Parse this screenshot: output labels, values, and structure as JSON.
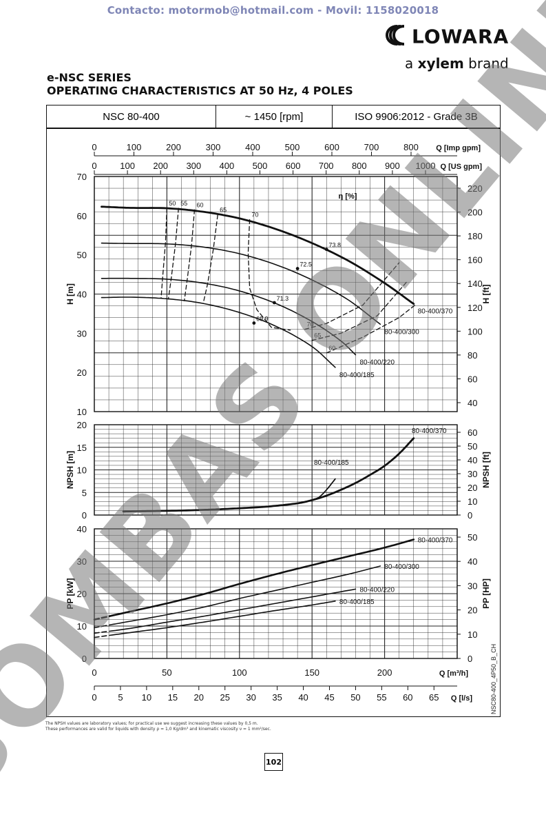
{
  "header": {
    "contact": "Contacto: motormob@hotmail.com - Movil: 1158020018",
    "brand": "LOWARA",
    "brand_sub_prefix": "a ",
    "brand_sub_bold": "xylem",
    "brand_sub_suffix": " brand",
    "series": "e-NSC SERIES",
    "title": "OPERATING CHARACTERISTICS AT 50 Hz, 4 POLES"
  },
  "spec_table": {
    "model": "NSC 80-400",
    "speed": "~ 1450 [rpm]",
    "standard": "ISO 9906:2012 - Grade 3B"
  },
  "footer": {
    "note1": "The NPSH values are laboratory values; for practical use we suggest increasing these values by 0,5 m.",
    "note2": "These performances are valid for liquids with density ρ = 1,0 Kg/dm³ and kinematic viscosity ν = 1 mm²/sec.",
    "page": "102",
    "code": "NSC80-400_4P50_B_CH"
  },
  "watermark": "BOMBAS ONLINE",
  "colors": {
    "line": "#111111",
    "grid": "#222222",
    "watermark": "#8a8a8a",
    "contact": "#7f86b6"
  },
  "chart_data": [
    {
      "type": "line",
      "name": "head",
      "xlabel": "Q [m³/h]",
      "ylabel_left": "H [m]",
      "ylabel_right": "H [ft]",
      "xlim": [
        0,
        250
      ],
      "ylim": [
        10,
        70
      ],
      "yticks_left": [
        "10",
        "20",
        "30",
        "40",
        "50",
        "60",
        "70"
      ],
      "yticks_right": [
        "40",
        "60",
        "80",
        "100",
        "120",
        "140",
        "160",
        "180",
        "200",
        "220"
      ],
      "top_axis_imp": {
        "label": "Q [Imp gpm]",
        "ticks": [
          "0",
          "100",
          "200",
          "300",
          "400",
          "500",
          "600",
          "700",
          "800"
        ]
      },
      "top_axis_us": {
        "label": "Q [US gpm]",
        "ticks": [
          "0",
          "100",
          "200",
          "300",
          "400",
          "500",
          "600",
          "700",
          "800",
          "900",
          "1000"
        ]
      },
      "efficiency_label": "η [%]",
      "series": [
        {
          "name": "80-400/370",
          "x": [
            5,
            25,
            50,
            75,
            100,
            125,
            150,
            175,
            200,
            220
          ],
          "y": [
            62.3,
            62,
            61.9,
            61,
            59.3,
            56.6,
            53,
            48.5,
            42.8,
            37.5
          ],
          "dashed_to": 5
        },
        {
          "name": "80-400/300",
          "x": [
            5,
            25,
            50,
            75,
            100,
            125,
            150,
            175,
            197
          ],
          "y": [
            53,
            52.9,
            52.8,
            52,
            50.3,
            47.5,
            43.6,
            38.5,
            32.3
          ],
          "dashed_to": 5
        },
        {
          "name": "80-400/220",
          "x": [
            5,
            25,
            50,
            75,
            100,
            125,
            150,
            170,
            180
          ],
          "y": [
            44,
            44,
            43.8,
            42.8,
            40.8,
            37.6,
            33,
            28,
            24.5
          ],
          "dashed_to": 5
        },
        {
          "name": "80-400/185",
          "x": [
            5,
            25,
            50,
            75,
            100,
            125,
            150,
            166
          ],
          "y": [
            39.1,
            39.2,
            38.8,
            37.6,
            35.3,
            31.8,
            26.6,
            21.3
          ],
          "dashed_to": 5
        }
      ],
      "efficiency_curves": [
        {
          "label": "50",
          "x": [
            50,
            49,
            47,
            46
          ],
          "y": [
            61.9,
            53,
            44,
            39
          ]
        },
        {
          "label": "55",
          "x": [
            58,
            56,
            53,
            51
          ],
          "y": [
            61.9,
            53,
            44,
            38.7
          ]
        },
        {
          "label": "60",
          "x": [
            69,
            67,
            64,
            62
          ],
          "y": [
            61.5,
            52.5,
            43.7,
            38.3
          ]
        },
        {
          "label": "65",
          "x": [
            85,
            82,
            78,
            75
          ],
          "y": [
            60.2,
            51.5,
            42.5,
            37.6
          ]
        },
        {
          "label": "70",
          "x": [
            107,
            106,
            107,
            112,
            122,
            135
          ],
          "y": [
            59,
            50.5,
            41.5,
            36,
            31.5,
            30.8
          ]
        },
        {
          "label": "70",
          "x": [
            145,
            160,
            185,
            210
          ],
          "y": [
            31,
            32.5,
            37.2,
            48
          ]
        },
        {
          "label": "65",
          "x": [
            150,
            170,
            195,
            215
          ],
          "y": [
            28.2,
            30,
            34.5,
            43
          ]
        },
        {
          "label": "60",
          "x": [
            160,
            185,
            210,
            222
          ],
          "y": [
            25,
            29,
            34,
            37.5
          ]
        }
      ],
      "efficiency_points": [
        {
          "label": "73.8",
          "x": 160,
          "y": 51.4
        },
        {
          "label": "72.5",
          "x": 140,
          "y": 46.5
        },
        {
          "label": "71.3",
          "x": 124,
          "y": 37.8
        },
        {
          "label": "69.9",
          "x": 110,
          "y": 32.6
        }
      ]
    },
    {
      "type": "line",
      "name": "npsh",
      "ylabel_left": "NPSH [m]",
      "ylabel_right": "NPSH [ft]",
      "ylim": [
        0,
        20
      ],
      "yticks_left": [
        "0",
        "5",
        "10",
        "15",
        "20"
      ],
      "yticks_right": [
        "0",
        "10",
        "20",
        "30",
        "40",
        "50",
        "60"
      ],
      "series": [
        {
          "name": "80-400/370",
          "x": [
            20,
            40,
            60,
            80,
            100,
            120,
            140,
            150,
            160,
            170,
            180,
            190,
            200,
            210,
            220
          ],
          "y": [
            0.8,
            0.9,
            1,
            1.2,
            1.5,
            1.9,
            2.6,
            3.3,
            4.3,
            5.6,
            7.1,
            8.9,
            10.9,
            13.6,
            17
          ]
        },
        {
          "name": "80-400/185",
          "x": [
            140,
            150,
            155,
            160,
            166
          ],
          "y": [
            2.6,
            3.3,
            4,
            5.6,
            8
          ]
        }
      ]
    },
    {
      "type": "line",
      "name": "power",
      "xlabel": "Q [m³/h]",
      "ylabel_left": "PP [kW]",
      "ylabel_right": "PP [HP]",
      "ylim": [
        0,
        40
      ],
      "yticks_left": [
        "0",
        "10",
        "20",
        "30",
        "40"
      ],
      "yticks_right": [
        "0",
        "10",
        "20",
        "30",
        "40",
        "50"
      ],
      "xticks_bottom": [
        "0",
        "50",
        "100",
        "150",
        "200"
      ],
      "bottom_axis_ls": {
        "label": "Q [l/s]",
        "ticks": [
          "0",
          "5",
          "10",
          "15",
          "20",
          "25",
          "30",
          "35",
          "40",
          "45",
          "50",
          "55",
          "60",
          "65"
        ]
      },
      "series": [
        {
          "name": "80-400/370",
          "x": [
            0,
            25,
            50,
            75,
            100,
            125,
            150,
            175,
            200,
            220
          ],
          "y": [
            12,
            14.5,
            17,
            19.8,
            23,
            26,
            28.8,
            31.5,
            34.2,
            36.7
          ],
          "dashed_to": 10
        },
        {
          "name": "80-400/300",
          "x": [
            0,
            25,
            50,
            75,
            100,
            125,
            150,
            175,
            197
          ],
          "y": [
            9.5,
            11.5,
            13.5,
            15.8,
            18.5,
            21,
            23.5,
            26,
            28.5
          ],
          "dashed_to": 10
        },
        {
          "name": "80-400/220",
          "x": [
            0,
            25,
            50,
            75,
            100,
            125,
            150,
            180
          ],
          "y": [
            7.8,
            9.3,
            11.2,
            13,
            15,
            17,
            19,
            21.4
          ],
          "dashed_to": 10
        },
        {
          "name": "80-400/185",
          "x": [
            0,
            25,
            50,
            75,
            100,
            125,
            150,
            166
          ],
          "y": [
            6.5,
            8,
            9.5,
            11.2,
            13,
            14.8,
            16.5,
            17.7
          ],
          "dashed_to": 10
        }
      ]
    }
  ]
}
